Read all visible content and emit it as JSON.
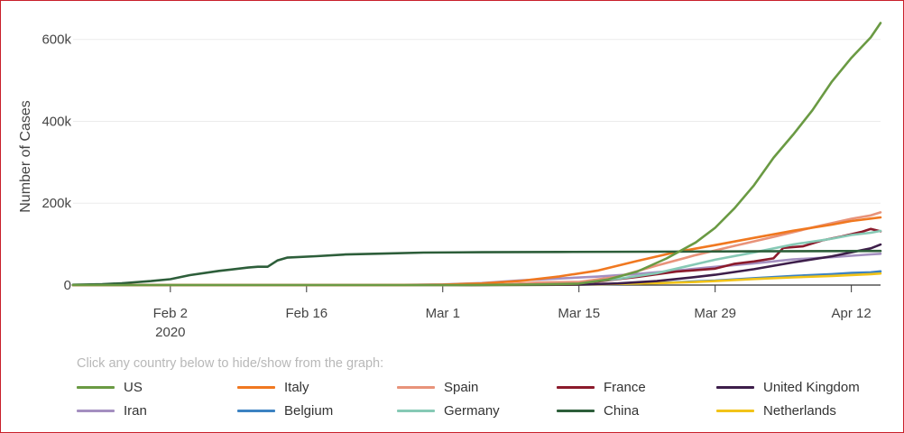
{
  "legend_hint": "Click any country below to hide/show from the graph:",
  "chart_data": {
    "type": "line",
    "title": "",
    "ylabel": "Number of Cases",
    "xlabel": "",
    "x_ticks": [
      {
        "day": 10,
        "label": "Feb 2",
        "sub": "2020"
      },
      {
        "day": 24,
        "label": "Feb 16",
        "sub": ""
      },
      {
        "day": 38,
        "label": "Mar 1",
        "sub": ""
      },
      {
        "day": 52,
        "label": "Mar 15",
        "sub": ""
      },
      {
        "day": 66,
        "label": "Mar 29",
        "sub": ""
      },
      {
        "day": 80,
        "label": "Apr 12",
        "sub": ""
      }
    ],
    "x_range_days": [
      0,
      83
    ],
    "x_note": "days counted from Jan 23, 2020",
    "y_ticks": [
      {
        "value": 0,
        "label": "0"
      },
      {
        "value": 200000,
        "label": "200k"
      },
      {
        "value": 400000,
        "label": "400k"
      },
      {
        "value": 600000,
        "label": "600k"
      }
    ],
    "ylim": [
      0,
      650000
    ],
    "grid": "horizontal",
    "series": [
      {
        "name": "US",
        "color": "#6a9a43",
        "points": [
          [
            0,
            1
          ],
          [
            40,
            70
          ],
          [
            48,
            1600
          ],
          [
            52,
            3500
          ],
          [
            55,
            13700
          ],
          [
            58,
            33000
          ],
          [
            61,
            65000
          ],
          [
            64,
            104000
          ],
          [
            66,
            140000
          ],
          [
            68,
            188000
          ],
          [
            70,
            244000
          ],
          [
            72,
            311000
          ],
          [
            74,
            367000
          ],
          [
            76,
            427000
          ],
          [
            78,
            497000
          ],
          [
            80,
            555000
          ],
          [
            82,
            605000
          ],
          [
            83,
            640000
          ]
        ]
      },
      {
        "name": "Italy",
        "color": "#f07820",
        "points": [
          [
            0,
            0
          ],
          [
            30,
            3
          ],
          [
            34,
            155
          ],
          [
            38,
            1128
          ],
          [
            42,
            3858
          ],
          [
            46,
            10149
          ],
          [
            50,
            21157
          ],
          [
            54,
            35713
          ],
          [
            58,
            59138
          ],
          [
            62,
            80589
          ],
          [
            66,
            97689
          ],
          [
            70,
            115242
          ],
          [
            74,
            132547
          ],
          [
            78,
            147577
          ],
          [
            80,
            156363
          ],
          [
            82,
            162488
          ],
          [
            83,
            165155
          ]
        ]
      },
      {
        "name": "Spain",
        "color": "#e8937a",
        "points": [
          [
            0,
            0
          ],
          [
            38,
            84
          ],
          [
            44,
            1200
          ],
          [
            48,
            6391
          ],
          [
            52,
            7798
          ],
          [
            56,
            20410
          ],
          [
            60,
            47610
          ],
          [
            64,
            73235
          ],
          [
            68,
            95923
          ],
          [
            72,
            117710
          ],
          [
            76,
            140510
          ],
          [
            80,
            161852
          ],
          [
            82,
            170099
          ],
          [
            83,
            177633
          ]
        ]
      },
      {
        "name": "France",
        "color": "#8b1a2b",
        "points": [
          [
            0,
            3
          ],
          [
            40,
            130
          ],
          [
            46,
            1400
          ],
          [
            50,
            4500
          ],
          [
            54,
            9100
          ],
          [
            58,
            19800
          ],
          [
            62,
            32900
          ],
          [
            66,
            40200
          ],
          [
            68,
            52100
          ],
          [
            70,
            57700
          ],
          [
            72,
            65200
          ],
          [
            73,
            90800
          ],
          [
            75,
            94500
          ],
          [
            77,
            109000
          ],
          [
            79,
            118800
          ],
          [
            81,
            129600
          ],
          [
            82,
            137000
          ],
          [
            83,
            131300
          ]
        ]
      },
      {
        "name": "United Kingdom",
        "color": "#3d1e4a",
        "points": [
          [
            0,
            0
          ],
          [
            40,
            36
          ],
          [
            48,
            600
          ],
          [
            52,
            1400
          ],
          [
            56,
            3900
          ],
          [
            60,
            9600
          ],
          [
            64,
            19500
          ],
          [
            66,
            25150
          ],
          [
            70,
            38700
          ],
          [
            74,
            55200
          ],
          [
            78,
            70300
          ],
          [
            80,
            79900
          ],
          [
            82,
            89600
          ],
          [
            83,
            99000
          ]
        ]
      },
      {
        "name": "Iran",
        "color": "#a48fc0",
        "points": [
          [
            0,
            0
          ],
          [
            28,
            28
          ],
          [
            34,
            388
          ],
          [
            38,
            1501
          ],
          [
            42,
            4747
          ],
          [
            46,
            11364
          ],
          [
            50,
            16169
          ],
          [
            54,
            20610
          ],
          [
            58,
            27017
          ],
          [
            62,
            35408
          ],
          [
            66,
            44605
          ],
          [
            70,
            53183
          ],
          [
            74,
            62589
          ],
          [
            78,
            68192
          ],
          [
            80,
            71686
          ],
          [
            82,
            74877
          ],
          [
            83,
            76389
          ]
        ]
      },
      {
        "name": "Belgium",
        "color": "#3c82c2",
        "points": [
          [
            0,
            0
          ],
          [
            40,
            10
          ],
          [
            48,
            400
          ],
          [
            52,
            1100
          ],
          [
            56,
            2200
          ],
          [
            60,
            4900
          ],
          [
            64,
            9100
          ],
          [
            66,
            10800
          ],
          [
            70,
            16800
          ],
          [
            74,
            22200
          ],
          [
            78,
            26700
          ],
          [
            80,
            29600
          ],
          [
            82,
            31100
          ],
          [
            83,
            33500
          ]
        ]
      },
      {
        "name": "Germany",
        "color": "#86c9b5",
        "points": [
          [
            0,
            0
          ],
          [
            38,
            130
          ],
          [
            44,
            1100
          ],
          [
            48,
            3700
          ],
          [
            52,
            5800
          ],
          [
            56,
            15300
          ],
          [
            60,
            29000
          ],
          [
            64,
            50800
          ],
          [
            66,
            62000
          ],
          [
            70,
            79700
          ],
          [
            74,
            99200
          ],
          [
            78,
            113300
          ],
          [
            80,
            122200
          ],
          [
            82,
            127800
          ],
          [
            83,
            132200
          ]
        ]
      },
      {
        "name": "China",
        "color": "#2d5e3a",
        "points": [
          [
            0,
            644
          ],
          [
            3,
            2118
          ],
          [
            5,
            4515
          ],
          [
            8,
            9802
          ],
          [
            10,
            14411
          ],
          [
            12,
            24324
          ],
          [
            15,
            34598
          ],
          [
            18,
            42747
          ],
          [
            19,
            44765
          ],
          [
            20,
            44700
          ],
          [
            21,
            59882
          ],
          [
            22,
            66885
          ],
          [
            25,
            70500
          ],
          [
            28,
            74600
          ],
          [
            32,
            76900
          ],
          [
            36,
            79300
          ],
          [
            42,
            80100
          ],
          [
            50,
            80800
          ],
          [
            60,
            81500
          ],
          [
            70,
            82300
          ],
          [
            83,
            83300
          ]
        ]
      },
      {
        "name": "Netherlands",
        "color": "#f2c318",
        "points": [
          [
            0,
            0
          ],
          [
            40,
            40
          ],
          [
            48,
            500
          ],
          [
            52,
            1100
          ],
          [
            56,
            2900
          ],
          [
            60,
            4700
          ],
          [
            64,
            7500
          ],
          [
            66,
            9800
          ],
          [
            70,
            14700
          ],
          [
            74,
            18800
          ],
          [
            78,
            22200
          ],
          [
            80,
            24400
          ],
          [
            82,
            26600
          ],
          [
            83,
            28200
          ]
        ]
      }
    ]
  }
}
